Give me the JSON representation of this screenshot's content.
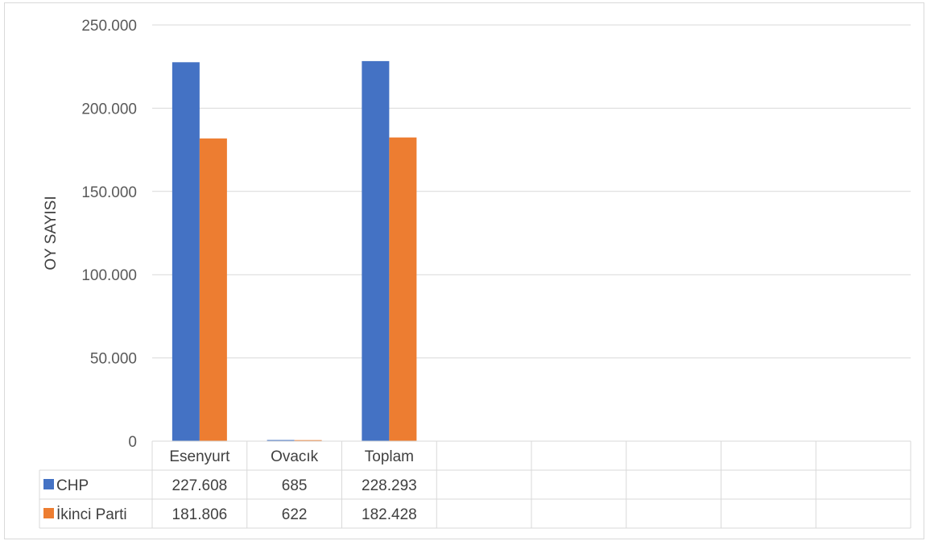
{
  "chart_data": {
    "type": "bar",
    "ylabel": "OY SAYISI",
    "xlabel": "",
    "title": "",
    "ylim": [
      0,
      250000
    ],
    "yticks": [
      0,
      50000,
      100000,
      150000,
      200000,
      250000
    ],
    "ytick_labels": [
      "0",
      "50.000",
      "100.000",
      "150.000",
      "200.000",
      "250.000"
    ],
    "categories": [
      "Esenyurt",
      "Ovacık",
      "Toplam"
    ],
    "empty_columns": 5,
    "grid": true,
    "legend": "data-table",
    "series": [
      {
        "name": "CHP",
        "color": "#4472C4",
        "values": [
          227608,
          685,
          228293
        ],
        "labels": [
          "227.608",
          "685",
          "228.293"
        ]
      },
      {
        "name": "İkinci Parti",
        "color": "#ED7D31",
        "values": [
          181806,
          622,
          182428
        ],
        "labels": [
          "181.806",
          "622",
          "182.428"
        ]
      }
    ]
  }
}
